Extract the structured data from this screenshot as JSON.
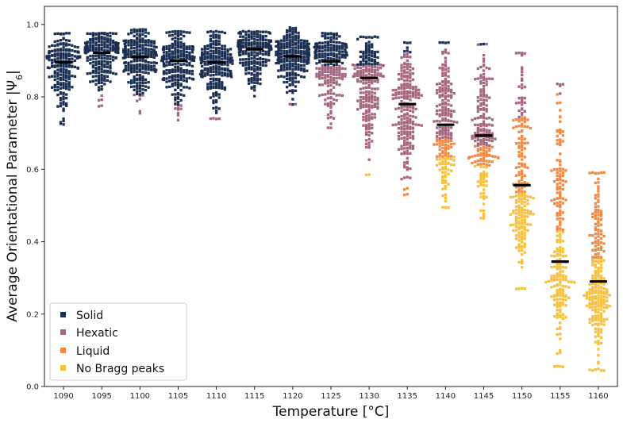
{
  "chart_data": {
    "type": "scatter",
    "subtype": "swarm",
    "title": "",
    "xlabel": "Temperature [°C]",
    "ylabel": "Average Orientational Parameter |Ψ",
    "ylabel_sub": "6",
    "ylabel_end": "|",
    "ylim": [
      0.0,
      1.05
    ],
    "yticks": [
      0.0,
      0.2,
      0.4,
      0.6,
      0.8,
      1.0
    ],
    "ytick_labels": [
      "0.0",
      "0.2",
      "0.4",
      "0.6",
      "0.8",
      "1.0"
    ],
    "categories": [
      "1090",
      "1095",
      "1100",
      "1105",
      "1110",
      "1115",
      "1120",
      "1125",
      "1130",
      "1135",
      "1140",
      "1145",
      "1150",
      "1155",
      "1160"
    ],
    "phase_colors": {
      "Solid": "#1b2f52",
      "Hexatic": "#a5677e",
      "Liquid": "#ef8a45",
      "No Bragg peaks": "#f6c141"
    },
    "mean_color": "#000000",
    "legend": {
      "position": "bottom-left",
      "entries": [
        {
          "label": "Solid",
          "color": "#1b2f52"
        },
        {
          "label": "Hexatic",
          "color": "#a5677e"
        },
        {
          "label": "Liquid",
          "color": "#ef8a45"
        },
        {
          "label": "No Bragg peaks",
          "color": "#f6c141"
        }
      ]
    },
    "series": [
      {
        "category": "1090",
        "mean": 0.895,
        "min": 0.725,
        "max": 0.975,
        "n": 200,
        "phases": [
          {
            "name": "Solid",
            "frac": 1.0
          }
        ]
      },
      {
        "category": "1095",
        "mean": 0.922,
        "min": 0.775,
        "max": 0.975,
        "n": 230,
        "phases": [
          {
            "name": "Solid",
            "frac": 0.98
          },
          {
            "name": "Hexatic",
            "frac": 0.02
          }
        ]
      },
      {
        "category": "1100",
        "mean": 0.91,
        "min": 0.755,
        "max": 0.985,
        "n": 230,
        "phases": [
          {
            "name": "Solid",
            "frac": 0.97
          },
          {
            "name": "Hexatic",
            "frac": 0.03
          }
        ]
      },
      {
        "category": "1105",
        "mean": 0.9,
        "min": 0.735,
        "max": 0.98,
        "n": 230,
        "phases": [
          {
            "name": "Solid",
            "frac": 0.96
          },
          {
            "name": "Hexatic",
            "frac": 0.04
          }
        ]
      },
      {
        "category": "1110",
        "mean": 0.895,
        "min": 0.74,
        "max": 0.98,
        "n": 220,
        "phases": [
          {
            "name": "Solid",
            "frac": 0.98
          },
          {
            "name": "Hexatic",
            "frac": 0.02
          }
        ]
      },
      {
        "category": "1115",
        "mean": 0.932,
        "min": 0.8,
        "max": 0.98,
        "n": 230,
        "phases": [
          {
            "name": "Solid",
            "frac": 1.0
          }
        ]
      },
      {
        "category": "1120",
        "mean": 0.912,
        "min": 0.78,
        "max": 0.99,
        "n": 250,
        "phases": [
          {
            "name": "Solid",
            "frac": 0.99
          },
          {
            "name": "Hexatic",
            "frac": 0.01
          }
        ]
      },
      {
        "category": "1125",
        "mean": 0.898,
        "min": 0.715,
        "max": 0.975,
        "n": 230,
        "phases": [
          {
            "name": "Solid",
            "frac": 0.55
          },
          {
            "name": "Hexatic",
            "frac": 0.45
          }
        ]
      },
      {
        "category": "1130",
        "mean": 0.852,
        "min": 0.585,
        "max": 0.965,
        "n": 220,
        "phases": [
          {
            "name": "Solid",
            "frac": 0.25
          },
          {
            "name": "Hexatic",
            "frac": 0.74
          },
          {
            "name": "No Bragg peaks",
            "frac": 0.01
          }
        ]
      },
      {
        "category": "1135",
        "mean": 0.78,
        "min": 0.53,
        "max": 0.95,
        "n": 220,
        "phases": [
          {
            "name": "Solid",
            "frac": 0.03
          },
          {
            "name": "Hexatic",
            "frac": 0.95
          },
          {
            "name": "Liquid",
            "frac": 0.02
          }
        ]
      },
      {
        "category": "1140",
        "mean": 0.723,
        "min": 0.495,
        "max": 0.95,
        "n": 220,
        "phases": [
          {
            "name": "Solid",
            "frac": 0.02
          },
          {
            "name": "Hexatic",
            "frac": 0.6
          },
          {
            "name": "Liquid",
            "frac": 0.16
          },
          {
            "name": "No Bragg peaks",
            "frac": 0.22
          }
        ]
      },
      {
        "category": "1145",
        "mean": 0.693,
        "min": 0.465,
        "max": 0.945,
        "n": 210,
        "phases": [
          {
            "name": "Solid",
            "frac": 0.01
          },
          {
            "name": "Hexatic",
            "frac": 0.6
          },
          {
            "name": "Liquid",
            "frac": 0.22
          },
          {
            "name": "No Bragg peaks",
            "frac": 0.17
          }
        ]
      },
      {
        "category": "1150",
        "mean": 0.556,
        "min": 0.27,
        "max": 0.92,
        "n": 220,
        "phases": [
          {
            "name": "Hexatic",
            "frac": 0.14
          },
          {
            "name": "Liquid",
            "frac": 0.36
          },
          {
            "name": "No Bragg peaks",
            "frac": 0.5
          }
        ]
      },
      {
        "category": "1155",
        "mean": 0.345,
        "min": 0.055,
        "max": 0.835,
        "n": 230,
        "phases": [
          {
            "name": "Hexatic",
            "frac": 0.02
          },
          {
            "name": "Liquid",
            "frac": 0.38
          },
          {
            "name": "No Bragg peaks",
            "frac": 0.6
          }
        ]
      },
      {
        "category": "1160",
        "mean": 0.29,
        "min": 0.045,
        "max": 0.59,
        "n": 240,
        "phases": [
          {
            "name": "Liquid",
            "frac": 0.33
          },
          {
            "name": "No Bragg peaks",
            "frac": 0.67
          }
        ]
      }
    ]
  }
}
